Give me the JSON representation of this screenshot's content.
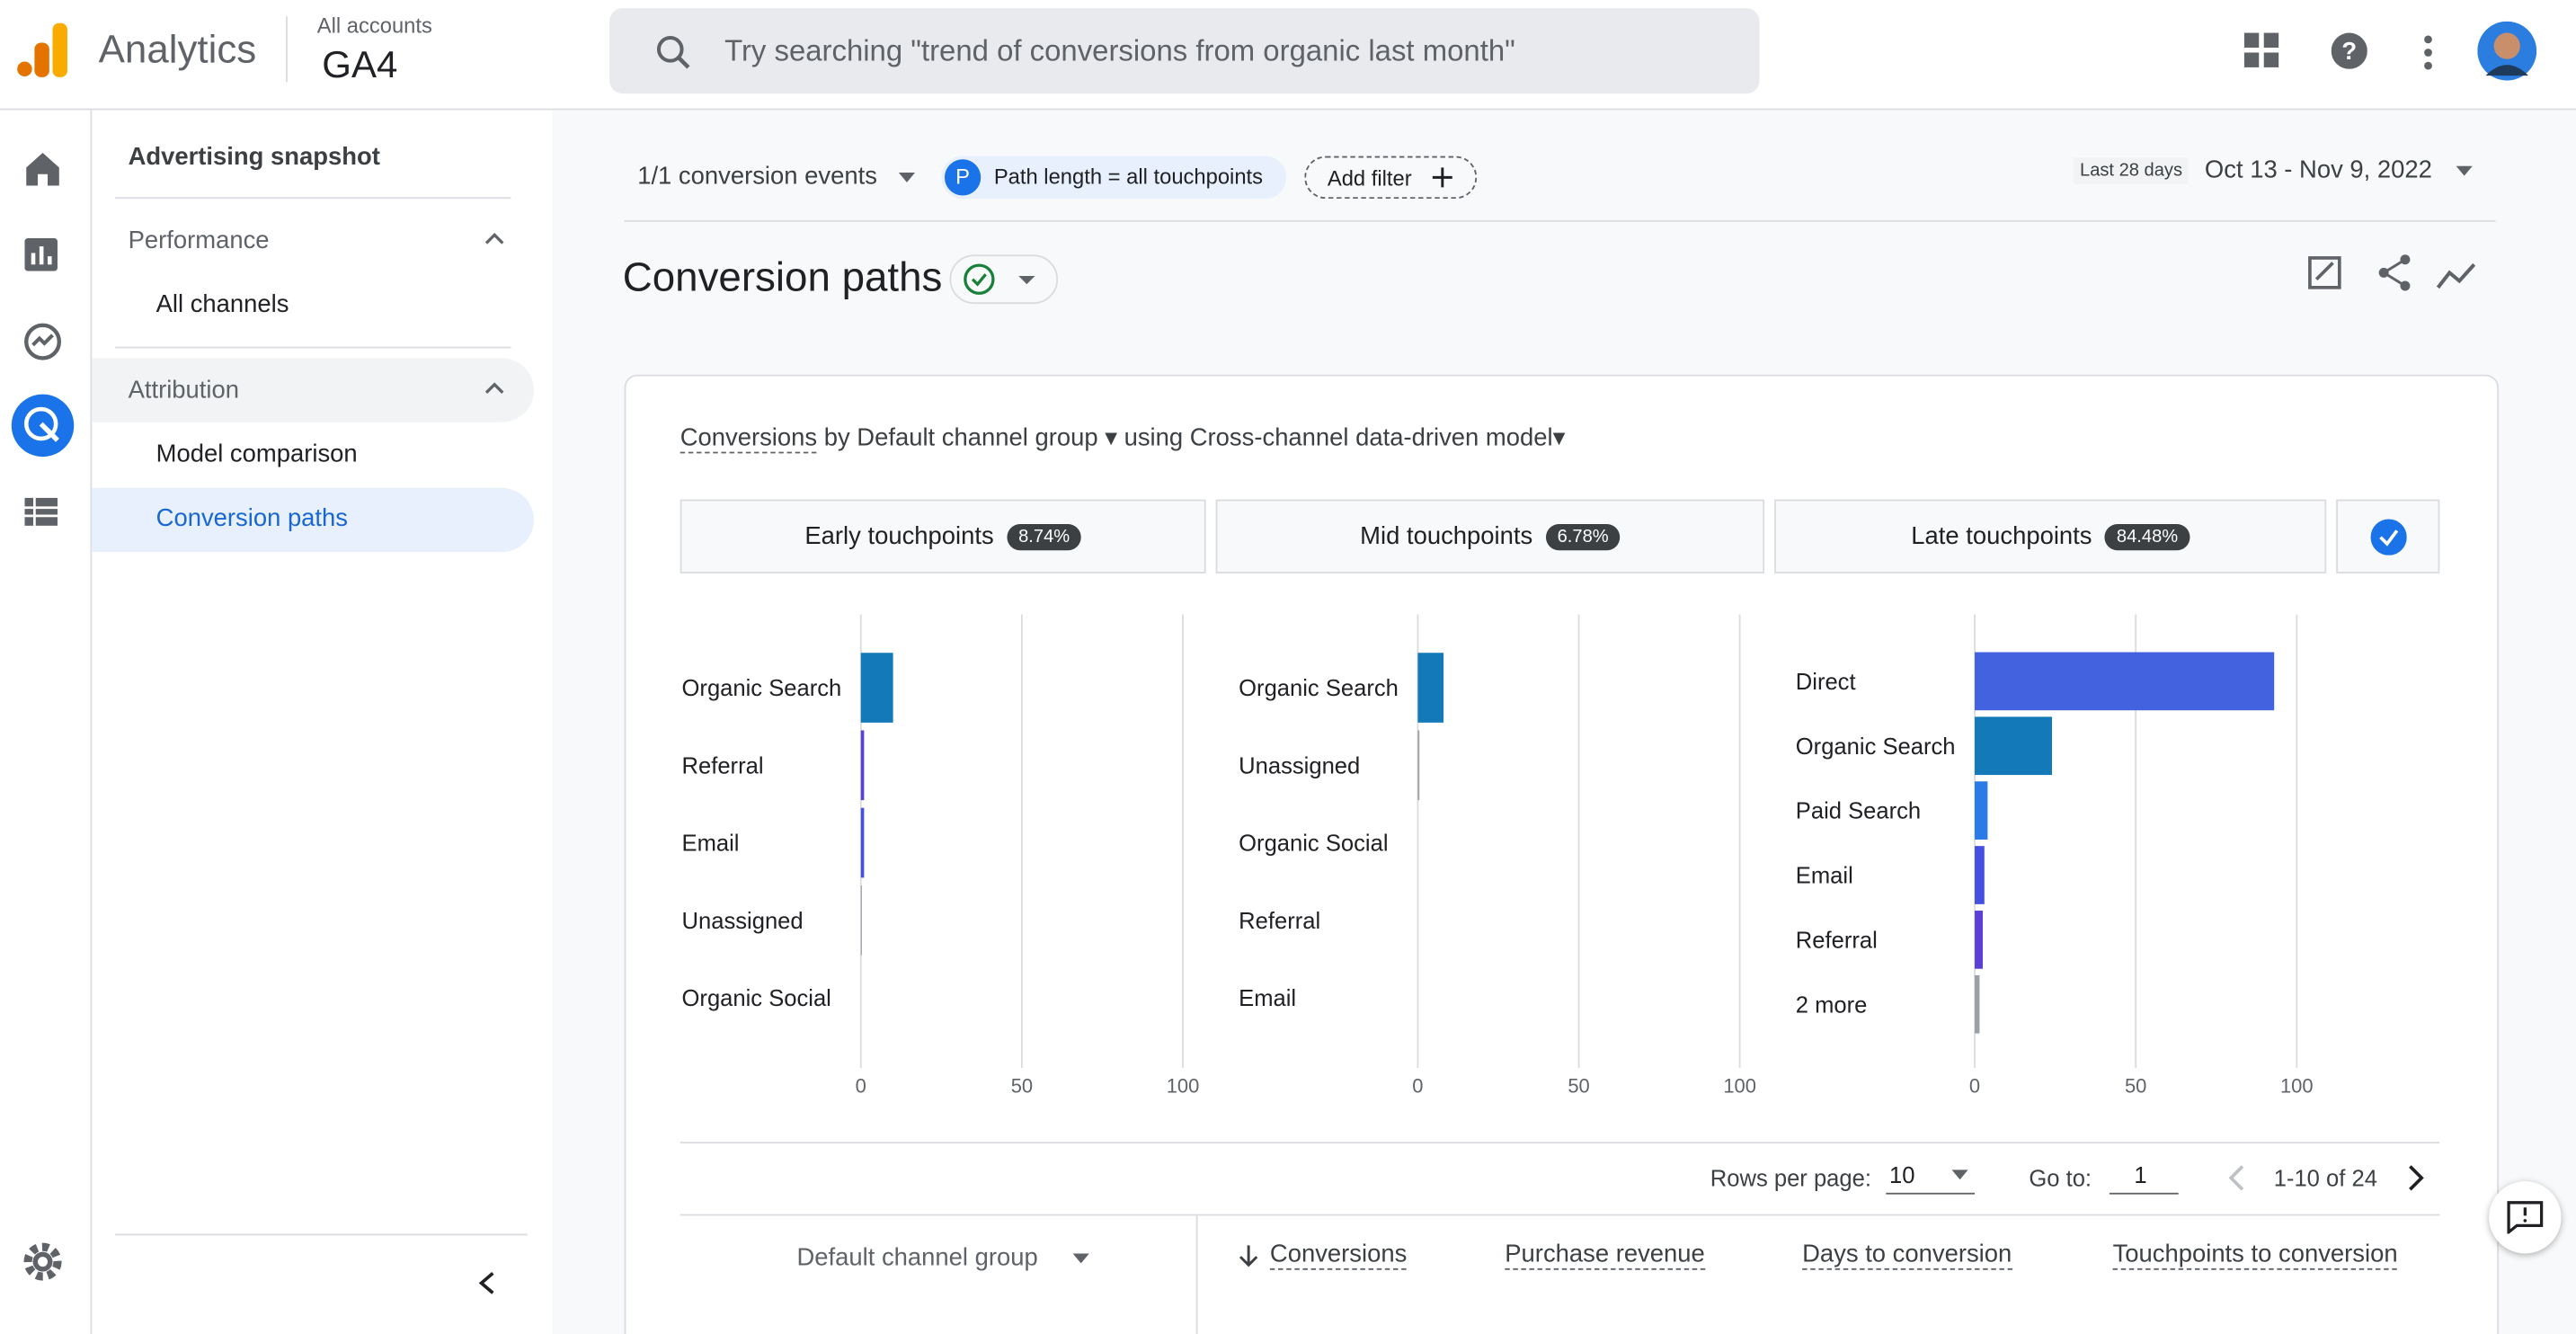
{
  "header": {
    "product": "Analytics",
    "account_crumb": "All accounts",
    "property": "GA4",
    "search_placeholder": "Try searching \"trend of conversions from organic last month\""
  },
  "sidebar": {
    "items": [
      "Advertising snapshot",
      "Performance",
      "All channels",
      "Attribution",
      "Model comparison",
      "Conversion paths"
    ]
  },
  "filters": {
    "events": "1/1 conversion events",
    "chip_letter": "P",
    "chip": "Path length = all touchpoints",
    "add_filter": "Add filter",
    "range_label": "Last 28 days",
    "date_range": "Oct 13 - Nov 9, 2022"
  },
  "page_title": "Conversion paths",
  "card": {
    "metric": "Conversions",
    "dimension": "by Default channel group",
    "model": "using Cross-channel data-driven model",
    "stages": [
      {
        "name": "Early touchpoints",
        "share": "8.74%"
      },
      {
        "name": "Mid touchpoints",
        "share": "6.78%"
      },
      {
        "name": "Late touchpoints",
        "share": "84.48%"
      }
    ]
  },
  "chart_data": [
    {
      "type": "bar",
      "orientation": "horizontal",
      "categories": [
        "Organic Search",
        "Referral",
        "Email",
        "Unassigned",
        "Organic Social"
      ],
      "values": [
        10,
        1,
        1,
        0.3,
        0
      ],
      "colors": [
        "#1479b8",
        "#5c3fd4",
        "#4650de",
        "#9aa0a6",
        "#9aa0a6"
      ],
      "xlim": [
        0,
        100
      ],
      "xticks": [
        0,
        50,
        100
      ],
      "grid": true
    },
    {
      "type": "bar",
      "orientation": "horizontal",
      "categories": [
        "Organic Search",
        "Unassigned",
        "Organic Social",
        "Referral",
        "Email"
      ],
      "values": [
        8,
        0.5,
        0,
        0,
        0
      ],
      "colors": [
        "#1479b8",
        "#9aa0a6",
        "#9aa0a6",
        "#5c3fd4",
        "#4650de"
      ],
      "xlim": [
        0,
        100
      ],
      "xticks": [
        0,
        50,
        100
      ],
      "grid": true
    },
    {
      "type": "bar",
      "orientation": "horizontal",
      "categories": [
        "Direct",
        "Organic Search",
        "Paid Search",
        "Email",
        "Referral",
        "2 more"
      ],
      "values": [
        93,
        24,
        4,
        3,
        2.5,
        1.5
      ],
      "colors": [
        "#4262e0",
        "#1479b8",
        "#2a7be8",
        "#4650de",
        "#5c3fd4",
        "#9aa0a6"
      ],
      "xlim": [
        0,
        100
      ],
      "xticks": [
        0,
        50,
        100
      ],
      "grid": true
    }
  ],
  "pagination": {
    "rows_label": "Rows per page:",
    "rows": "10",
    "goto_label": "Go to:",
    "goto": "1",
    "range": "1-10 of 24"
  },
  "table": {
    "columns": [
      "Default channel group",
      "Conversions",
      "Purchase revenue",
      "Days to conversion",
      "Touchpoints to conversion"
    ]
  }
}
